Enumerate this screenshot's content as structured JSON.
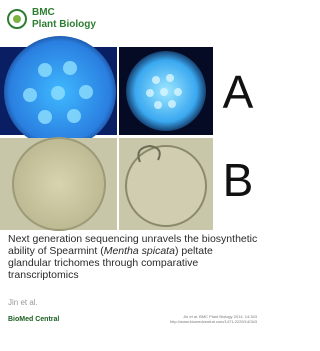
{
  "header": {
    "journal_prefix": "BMC",
    "journal_name": "Plant Biology"
  },
  "figure": {
    "label_a": "A",
    "label_b": "B"
  },
  "article": {
    "title_start": "Next generation sequencing unravels the biosynthetic ability of Spearmint (",
    "title_italic": "Mentha spicata",
    "title_end": ") peltate glandular trichomes through comparative transcriptomics",
    "authors": "Jin et al.",
    "citation": "Jin et al. BMC Plant Biology 2014, 14:343",
    "url": "http://www.biomedcentral.com/1471-2229/14/343"
  },
  "footer": {
    "publisher": "BioMed Central"
  }
}
